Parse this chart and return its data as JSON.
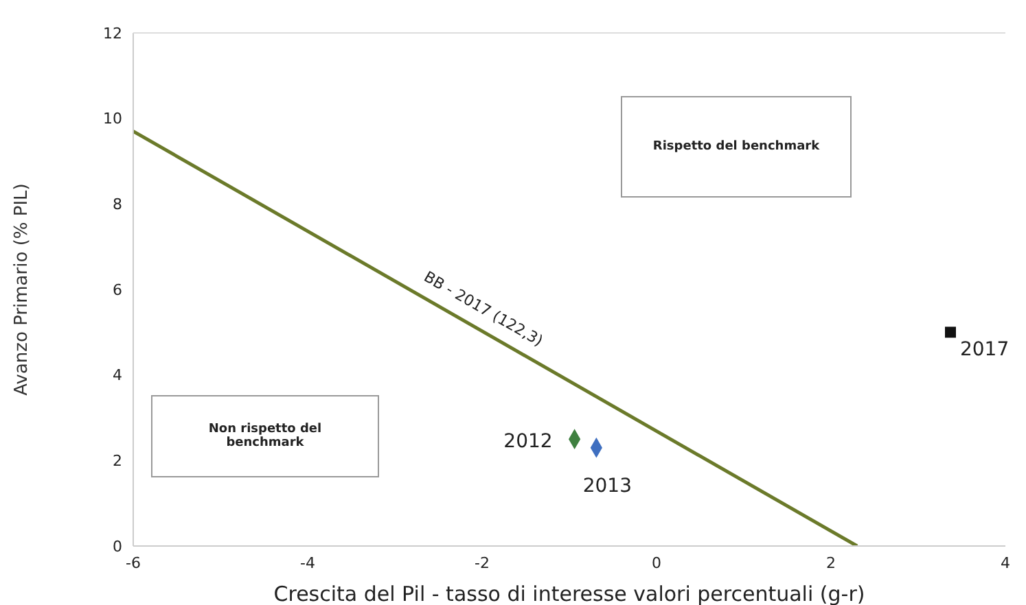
{
  "chart_data": {
    "type": "scatter",
    "xlabel": "Crescita del Pil - tasso di interesse valori percentuali (g-r)",
    "ylabel": "Avanzo Primario (% PIL)",
    "xlim": [
      -6,
      4
    ],
    "xticks": [
      -6,
      -4,
      -2,
      0,
      2,
      4
    ],
    "ylim": [
      0,
      12
    ],
    "yticks": [
      0,
      2,
      4,
      6,
      8,
      10,
      12
    ],
    "grid": false,
    "legend": false,
    "series": [
      {
        "type": "line",
        "name": "BB - 2017 (122,3)",
        "color": "#6b7a2a",
        "x": [
          -6,
          2.3
        ],
        "values": [
          9.7,
          0
        ],
        "marker": "none",
        "line_style": "solid"
      },
      {
        "type": "scatter",
        "color": "#3f8040",
        "x": [
          -0.94
        ],
        "values": [
          2.5
        ],
        "marker": "diamond"
      },
      {
        "type": "scatter",
        "color": "#3f6fc0",
        "x": [
          -0.69
        ],
        "values": [
          2.3
        ],
        "marker": "diamond"
      },
      {
        "type": "scatter",
        "color": "#111111",
        "x": [
          3.37
        ],
        "values": [
          5.0
        ],
        "marker": "square"
      }
    ],
    "annotations": [
      {
        "text": "2012",
        "x": -0.94,
        "y": 2.5
      },
      {
        "text": "2013",
        "x": -0.69,
        "y": 2.3
      },
      {
        "text": "2017",
        "x": 3.37,
        "y": 5.0
      },
      "Rispetto del benchmark",
      "Non rispetto del benchmark"
    ]
  }
}
